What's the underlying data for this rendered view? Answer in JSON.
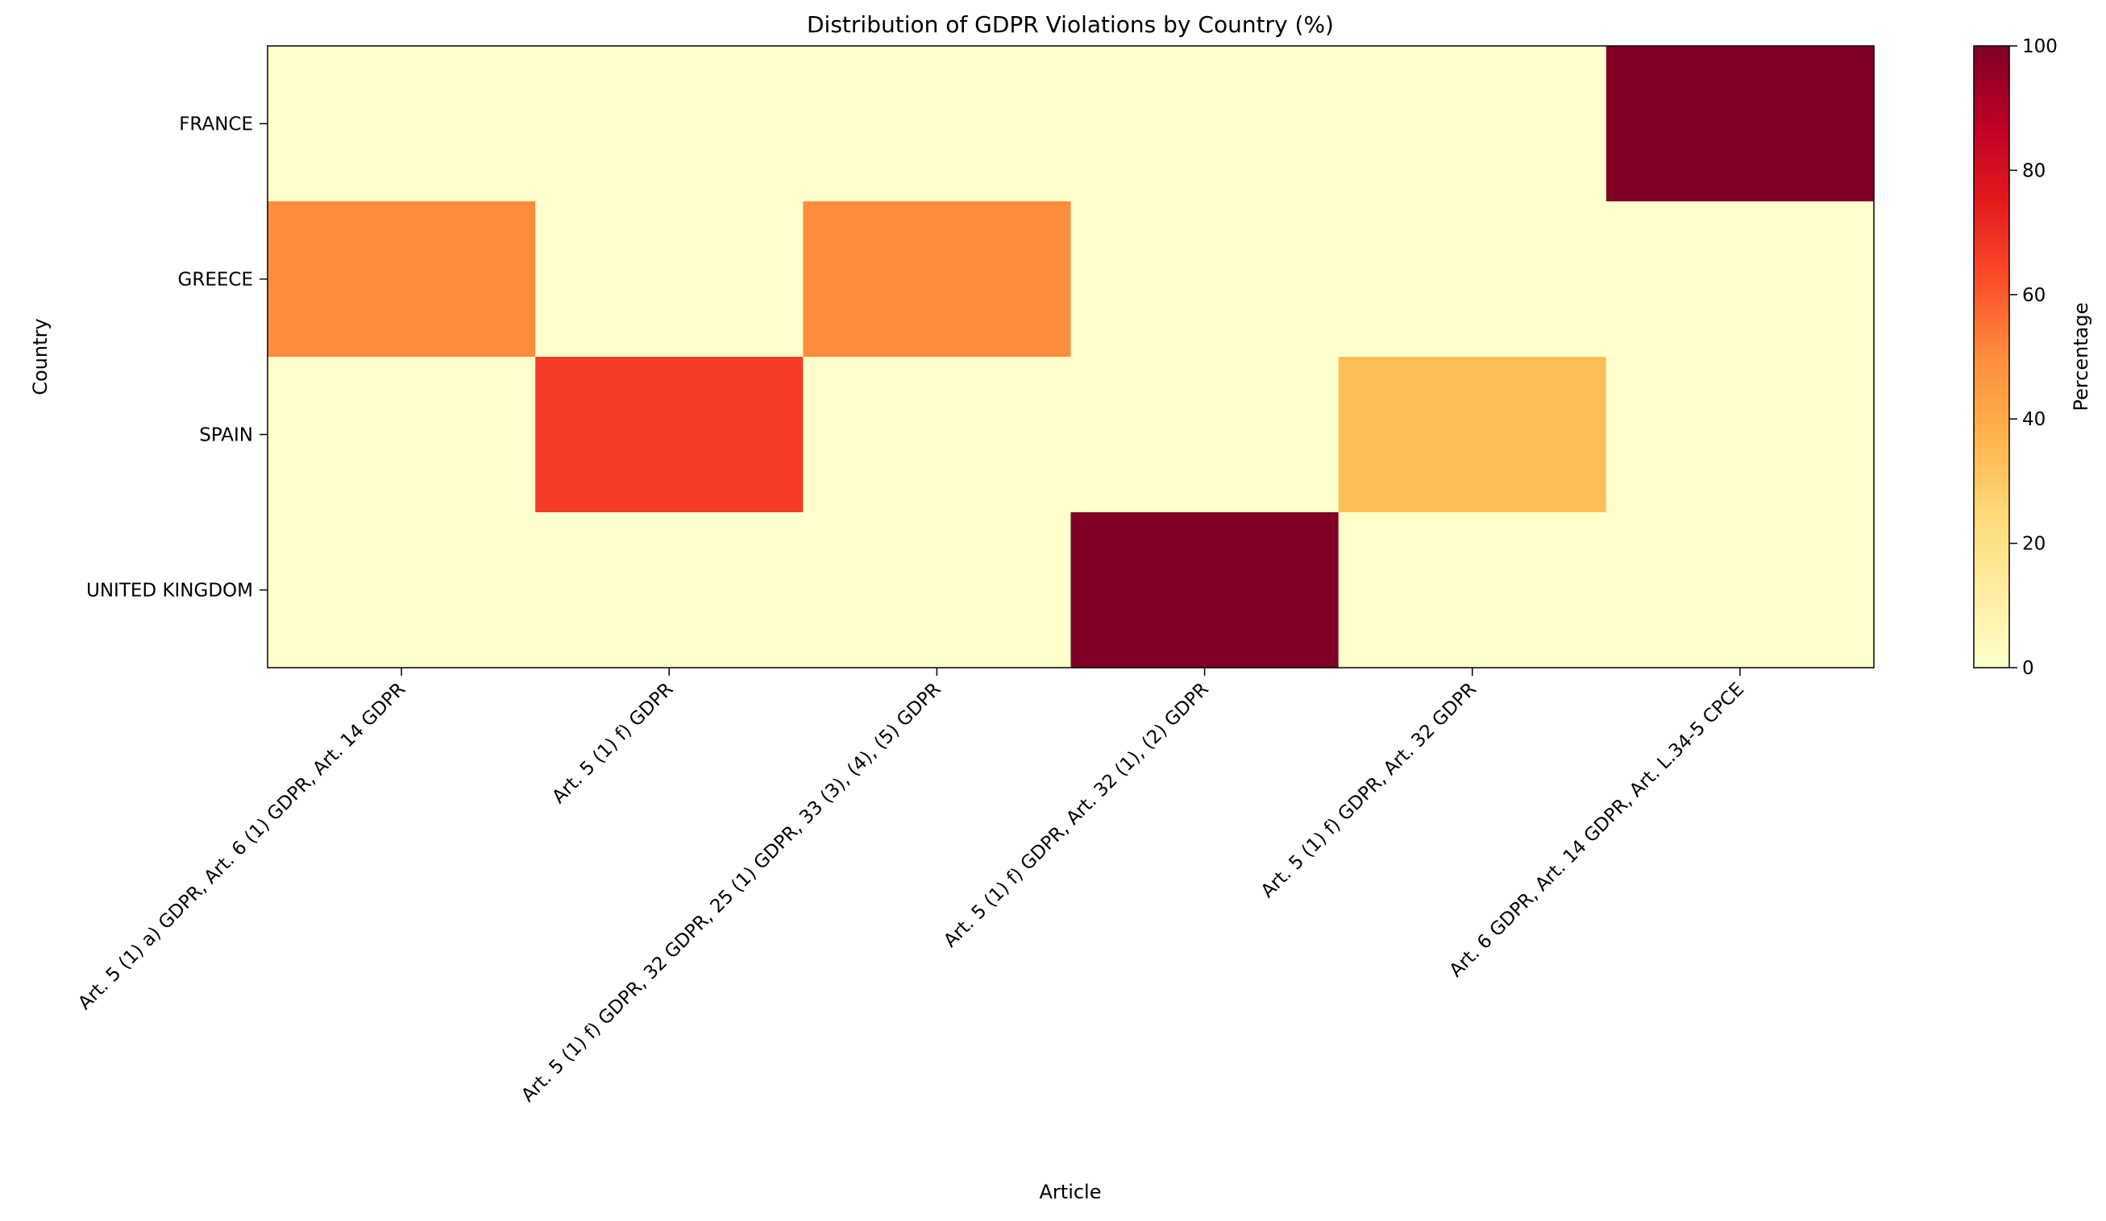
{
  "chart_data": {
    "type": "heatmap",
    "title": "Distribution of GDPR Violations by Country (%)",
    "xlabel": "Article",
    "ylabel": "Country",
    "x_categories": [
      "Art. 5 (1) a) GDPR, Art. 6 (1) GDPR, Art. 14 GDPR",
      "Art. 5 (1) f) GDPR",
      "Art. 5 (1) f) GDPR, 32 GDPR, 25 (1) GDPR, 33 (3), (4), (5) GDPR",
      "Art. 5 (1) f) GDPR, Art. 32 (1), (2) GDPR",
      "Art. 5 (1) f) GDPR, Art. 32 GDPR",
      "Art. 6 GDPR, Art. 14 GDPR, Art. L.34-5 CPCE"
    ],
    "y_categories": [
      "FRANCE",
      "GREECE",
      "SPAIN",
      "UNITED KINGDOM"
    ],
    "values": [
      [
        0,
        0,
        0,
        0,
        0,
        100
      ],
      [
        50,
        0,
        50,
        0,
        0,
        0
      ],
      [
        0,
        66.7,
        0,
        0,
        33.3,
        0
      ],
      [
        0,
        0,
        0,
        100,
        0,
        0
      ]
    ],
    "colorbar": {
      "label": "Percentage",
      "range": [
        0,
        100
      ],
      "ticks": [
        0,
        20,
        40,
        60,
        80,
        100
      ],
      "colormap": "YlOrRd"
    },
    "grid": false
  }
}
